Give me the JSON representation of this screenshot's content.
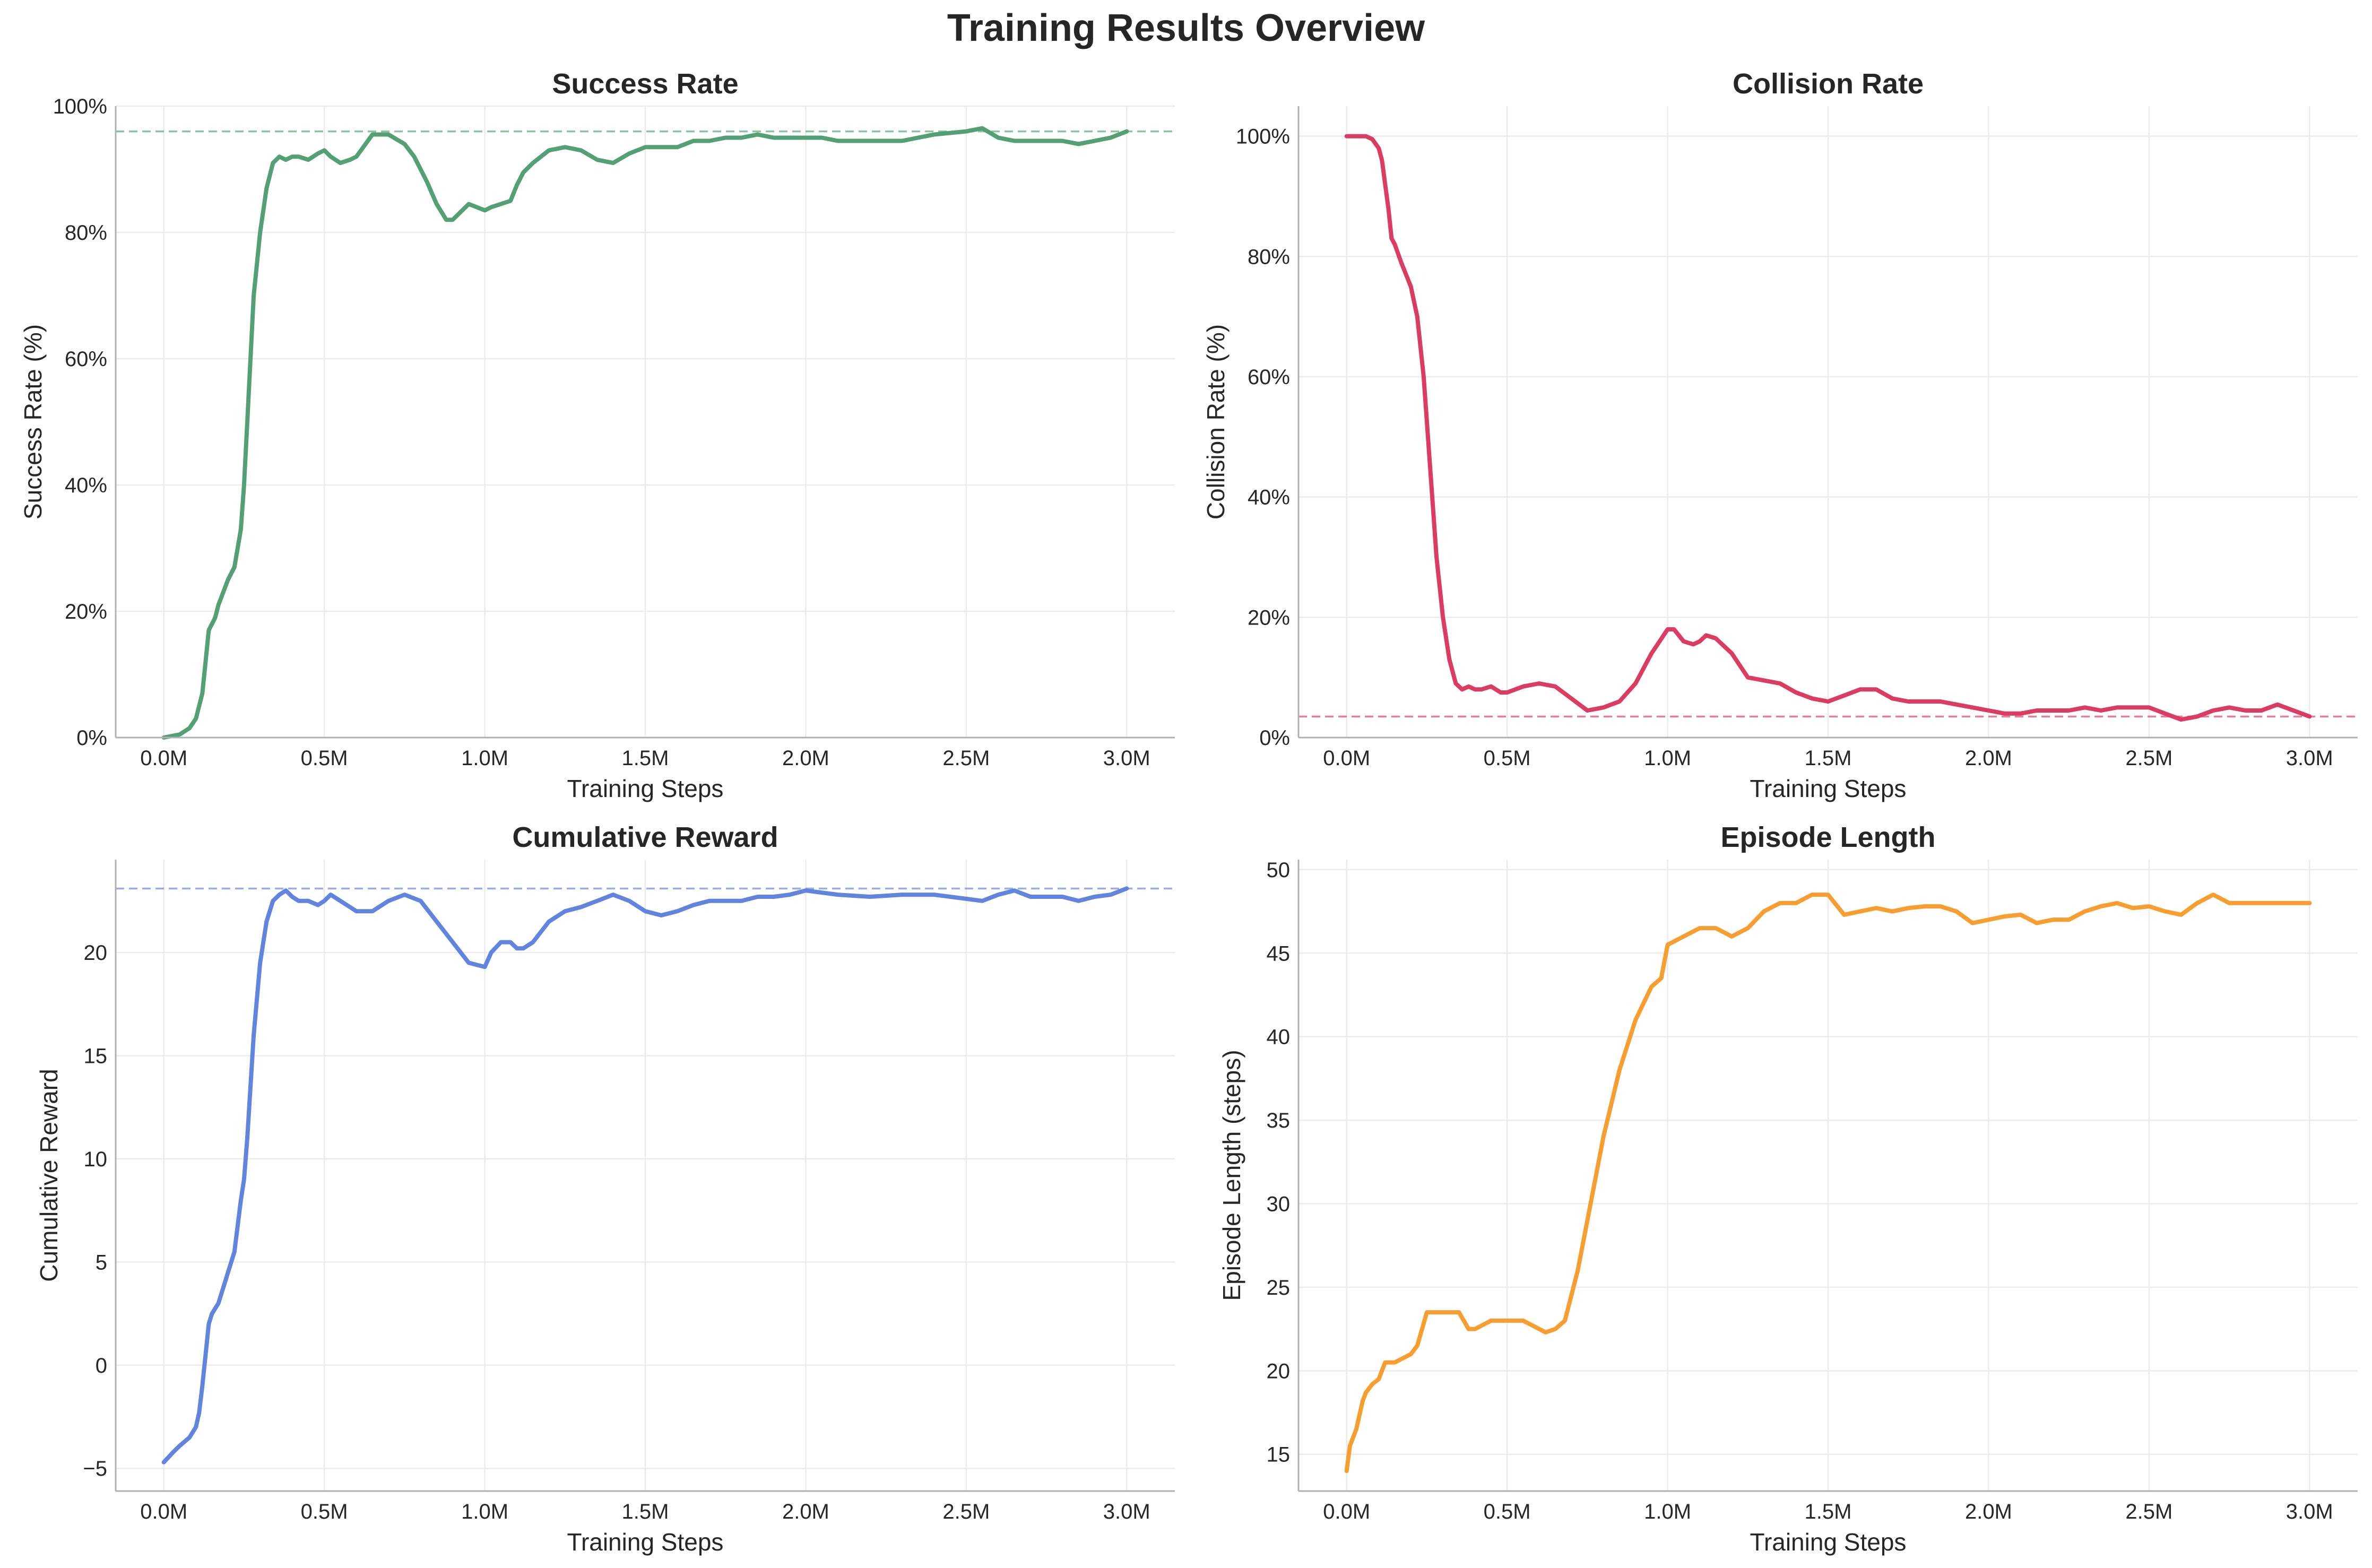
{
  "figure": {
    "title": "Training Results Overview"
  },
  "chart_data": [
    {
      "type": "line",
      "title": "Success Rate",
      "xlabel": "Training Steps",
      "ylabel": "Success Rate (%)",
      "xlim": [
        -0.15,
        3.15
      ],
      "ylim": [
        0,
        100
      ],
      "x_unit": "M steps",
      "xticks": [
        0,
        0.5,
        1.0,
        1.5,
        2.0,
        2.5,
        3.0
      ],
      "xtick_labels": [
        "0.0M",
        "0.5M",
        "1.0M",
        "1.5M",
        "2.0M",
        "2.5M",
        "3.0M"
      ],
      "yticks": [
        0,
        20,
        40,
        60,
        80,
        100
      ],
      "ytick_labels": [
        "0%",
        "20%",
        "40%",
        "60%",
        "80%",
        "100%"
      ],
      "grid": true,
      "color": "#52a073",
      "reference_line": {
        "y": 96,
        "style": "dashed",
        "color": "#52a073"
      },
      "series": [
        {
          "x": [
            0,
            0.05,
            0.08,
            0.1,
            0.12,
            0.13,
            0.14,
            0.15,
            0.16,
            0.17,
            0.2,
            0.22,
            0.24,
            0.25,
            0.26,
            0.28,
            0.3,
            0.32,
            0.34,
            0.36,
            0.38,
            0.4,
            0.42,
            0.45,
            0.48,
            0.5,
            0.52,
            0.55,
            0.58,
            0.6,
            0.65,
            0.7,
            0.75,
            0.78,
            0.82,
            0.85,
            0.88,
            0.9,
            0.95,
            1.0,
            1.02,
            1.05,
            1.08,
            1.1,
            1.12,
            1.15,
            1.2,
            1.25,
            1.3,
            1.35,
            1.4,
            1.45,
            1.5,
            1.55,
            1.6,
            1.65,
            1.7,
            1.75,
            1.8,
            1.85,
            1.9,
            1.95,
            2.0,
            2.02,
            2.05,
            2.1,
            2.2,
            2.3,
            2.4,
            2.5,
            2.55,
            2.6,
            2.65,
            2.7,
            2.8,
            2.85,
            2.9,
            2.95,
            3.0
          ],
          "y": [
            0,
            0.5,
            1.5,
            3,
            7,
            12,
            17,
            18,
            19,
            21,
            25,
            27,
            33,
            40,
            50,
            70,
            80,
            87,
            91,
            92,
            91.5,
            92,
            92,
            91.5,
            92.5,
            93,
            92,
            91,
            91.5,
            92,
            95.5,
            95.5,
            94,
            92,
            88,
            84.5,
            82,
            82,
            84.5,
            83.5,
            84,
            84.5,
            85,
            87.5,
            89.5,
            91,
            93,
            93.5,
            93,
            91.5,
            91,
            92.5,
            93.5,
            93.5,
            93.5,
            94.5,
            94.5,
            95,
            95,
            95.5,
            95,
            95,
            95,
            95,
            95,
            94.5,
            94.5,
            94.5,
            95.5,
            96,
            96.5,
            95,
            94.5,
            94.5,
            94.5,
            94,
            94.5,
            95,
            96
          ]
        }
      ]
    },
    {
      "type": "line",
      "title": "Collision Rate",
      "xlabel": "Training Steps",
      "ylabel": "Collision Rate (%)",
      "xlim": [
        -0.15,
        3.15
      ],
      "ylim": [
        0,
        105
      ],
      "x_unit": "M steps",
      "xticks": [
        0,
        0.5,
        1.0,
        1.5,
        2.0,
        2.5,
        3.0
      ],
      "xtick_labels": [
        "0.0M",
        "0.5M",
        "1.0M",
        "1.5M",
        "2.0M",
        "2.5M",
        "3.0M"
      ],
      "yticks": [
        0,
        20,
        40,
        60,
        80,
        100
      ],
      "ytick_labels": [
        "0%",
        "20%",
        "40%",
        "60%",
        "80%",
        "100%"
      ],
      "grid": true,
      "color": "#dc3c60",
      "reference_line": {
        "y": 3.5,
        "style": "dashed",
        "color": "#dc3c60"
      },
      "series": [
        {
          "x": [
            0,
            0.04,
            0.06,
            0.08,
            0.1,
            0.11,
            0.12,
            0.13,
            0.14,
            0.15,
            0.17,
            0.2,
            0.22,
            0.24,
            0.26,
            0.28,
            0.3,
            0.32,
            0.34,
            0.36,
            0.38,
            0.4,
            0.42,
            0.45,
            0.48,
            0.5,
            0.55,
            0.6,
            0.65,
            0.7,
            0.75,
            0.8,
            0.85,
            0.9,
            0.95,
            1.0,
            1.02,
            1.05,
            1.08,
            1.1,
            1.12,
            1.15,
            1.2,
            1.25,
            1.3,
            1.35,
            1.4,
            1.45,
            1.5,
            1.55,
            1.6,
            1.65,
            1.7,
            1.75,
            1.8,
            1.85,
            1.9,
            1.95,
            2.0,
            2.05,
            2.1,
            2.15,
            2.2,
            2.25,
            2.3,
            2.35,
            2.4,
            2.45,
            2.5,
            2.55,
            2.6,
            2.65,
            2.7,
            2.75,
            2.8,
            2.85,
            2.9,
            2.95,
            3.0
          ],
          "y": [
            100,
            100,
            100,
            99.5,
            98,
            96,
            92,
            88,
            83,
            82,
            79,
            75,
            70,
            60,
            45,
            30,
            20,
            13,
            9,
            8,
            8.5,
            8,
            8,
            8.5,
            7.5,
            7.5,
            8.5,
            9,
            8.5,
            6.5,
            4.5,
            5,
            6,
            9,
            14,
            18,
            18,
            16,
            15.5,
            16,
            17,
            16.5,
            14,
            10,
            9.5,
            9,
            7.5,
            6.5,
            6,
            7,
            8,
            8,
            6.5,
            6,
            6,
            6,
            5.5,
            5,
            4.5,
            4,
            4,
            4.5,
            4.5,
            4.5,
            5,
            4.5,
            5,
            5,
            5,
            4,
            3,
            3.5,
            4.5,
            5,
            4.5,
            4.5,
            5.5,
            4.5,
            3.5
          ]
        }
      ]
    },
    {
      "type": "line",
      "title": "Cumulative Reward",
      "xlabel": "Training Steps",
      "ylabel": "Cumulative Reward",
      "xlim": [
        -0.15,
        3.15
      ],
      "ylim": [
        -6.1,
        24.5
      ],
      "x_unit": "M steps",
      "xticks": [
        0,
        0.5,
        1.0,
        1.5,
        2.0,
        2.5,
        3.0
      ],
      "xtick_labels": [
        "0.0M",
        "0.5M",
        "1.0M",
        "1.5M",
        "2.0M",
        "2.5M",
        "3.0M"
      ],
      "yticks": [
        -5,
        0,
        5,
        10,
        15,
        20
      ],
      "ytick_labels": [
        "−5",
        "0",
        "5",
        "10",
        "15",
        "20"
      ],
      "grid": true,
      "color": "#6184df",
      "reference_line": {
        "y": 23.1,
        "style": "dashed",
        "color": "#6184df"
      },
      "series": [
        {
          "x": [
            0,
            0.03,
            0.05,
            0.08,
            0.1,
            0.11,
            0.12,
            0.13,
            0.14,
            0.15,
            0.17,
            0.2,
            0.22,
            0.24,
            0.25,
            0.26,
            0.28,
            0.3,
            0.32,
            0.34,
            0.36,
            0.38,
            0.4,
            0.42,
            0.45,
            0.48,
            0.5,
            0.52,
            0.55,
            0.6,
            0.65,
            0.7,
            0.75,
            0.8,
            0.85,
            0.9,
            0.95,
            1.0,
            1.02,
            1.05,
            1.08,
            1.1,
            1.12,
            1.15,
            1.2,
            1.25,
            1.3,
            1.35,
            1.4,
            1.45,
            1.5,
            1.55,
            1.6,
            1.65,
            1.7,
            1.75,
            1.8,
            1.85,
            1.9,
            1.95,
            2.0,
            2.05,
            2.1,
            2.2,
            2.3,
            2.4,
            2.5,
            2.55,
            2.6,
            2.65,
            2.7,
            2.8,
            2.85,
            2.9,
            2.95,
            3.0
          ],
          "y": [
            -4.7,
            -4.2,
            -3.9,
            -3.5,
            -3,
            -2.3,
            -1,
            0.5,
            2,
            2.5,
            3,
            4.5,
            5.5,
            8,
            9,
            11,
            16,
            19.5,
            21.5,
            22.5,
            22.8,
            23,
            22.7,
            22.5,
            22.5,
            22.3,
            22.5,
            22.8,
            22.5,
            22,
            22,
            22.5,
            22.8,
            22.5,
            21.5,
            20.5,
            19.5,
            19.3,
            20,
            20.5,
            20.5,
            20.2,
            20.2,
            20.5,
            21.5,
            22,
            22.2,
            22.5,
            22.8,
            22.5,
            22,
            21.8,
            22,
            22.3,
            22.5,
            22.5,
            22.5,
            22.7,
            22.7,
            22.8,
            23,
            22.9,
            22.8,
            22.7,
            22.8,
            22.8,
            22.6,
            22.5,
            22.8,
            23,
            22.7,
            22.7,
            22.5,
            22.7,
            22.8,
            23.1
          ]
        }
      ]
    },
    {
      "type": "line",
      "title": "Episode Length",
      "xlabel": "Training Steps",
      "ylabel": "Episode Length (steps)",
      "xlim": [
        -0.15,
        3.15
      ],
      "ylim": [
        12.8,
        50.6
      ],
      "x_unit": "M steps",
      "xticks": [
        0,
        0.5,
        1.0,
        1.5,
        2.0,
        2.5,
        3.0
      ],
      "xtick_labels": [
        "0.0M",
        "0.5M",
        "1.0M",
        "1.5M",
        "2.0M",
        "2.5M",
        "3.0M"
      ],
      "yticks": [
        15,
        20,
        25,
        30,
        35,
        40,
        45,
        50
      ],
      "ytick_labels": [
        "15",
        "20",
        "25",
        "30",
        "35",
        "40",
        "45",
        "50"
      ],
      "grid": true,
      "color": "#f89e30",
      "series": [
        {
          "x": [
            0,
            0.01,
            0.03,
            0.05,
            0.06,
            0.08,
            0.1,
            0.12,
            0.15,
            0.2,
            0.22,
            0.25,
            0.28,
            0.3,
            0.32,
            0.35,
            0.38,
            0.4,
            0.45,
            0.5,
            0.55,
            0.6,
            0.62,
            0.65,
            0.68,
            0.7,
            0.72,
            0.75,
            0.8,
            0.85,
            0.9,
            0.95,
            0.98,
            1.0,
            1.05,
            1.1,
            1.15,
            1.2,
            1.25,
            1.3,
            1.35,
            1.4,
            1.45,
            1.5,
            1.55,
            1.6,
            1.65,
            1.7,
            1.75,
            1.8,
            1.85,
            1.9,
            1.95,
            2.0,
            2.05,
            2.1,
            2.15,
            2.2,
            2.25,
            2.3,
            2.35,
            2.4,
            2.45,
            2.5,
            2.55,
            2.6,
            2.65,
            2.7,
            2.75,
            2.8,
            2.85,
            2.9,
            2.95,
            3.0
          ],
          "y": [
            14,
            15.5,
            16.5,
            18.2,
            18.7,
            19.2,
            19.5,
            20.5,
            20.5,
            21,
            21.5,
            23.5,
            23.5,
            23.5,
            23.5,
            23.5,
            22.5,
            22.5,
            23,
            23,
            23,
            22.5,
            22.3,
            22.5,
            23,
            24.5,
            26,
            29,
            34,
            38,
            41,
            43,
            43.5,
            45.5,
            46,
            46.5,
            46.5,
            46,
            46.5,
            47.5,
            48,
            48,
            48.5,
            48.5,
            47.3,
            47.5,
            47.7,
            47.5,
            47.7,
            47.8,
            47.8,
            47.5,
            46.8,
            47,
            47.2,
            47.3,
            46.8,
            47,
            47,
            47.5,
            47.8,
            48,
            47.7,
            47.8,
            47.5,
            47.3,
            48,
            48.5,
            48,
            48,
            48,
            48,
            48,
            48
          ]
        }
      ]
    }
  ]
}
